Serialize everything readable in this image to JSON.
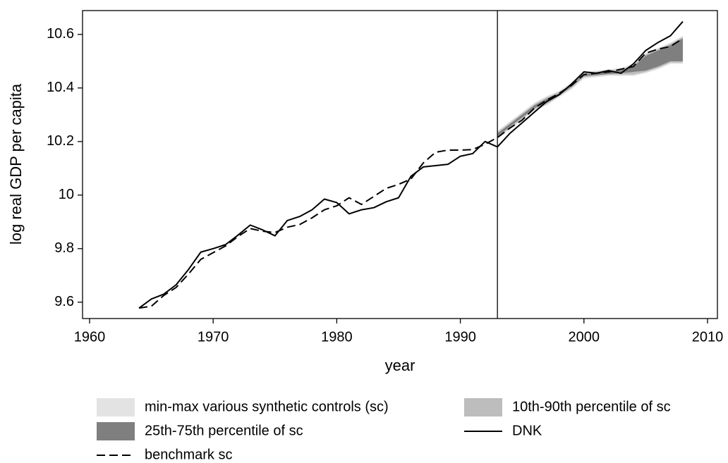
{
  "chart_data": {
    "type": "line",
    "x_label": "year",
    "y_label": "log real GDP per capita",
    "xlim": [
      1959.43,
      2010.8
    ],
    "ylim": [
      9.539,
      10.689
    ],
    "xticks": [
      1960,
      1970,
      1980,
      1990,
      2000,
      2010
    ],
    "yticks": [
      9.6,
      9.8,
      10,
      10.2,
      10.4,
      10.6
    ],
    "vline": 1993,
    "x": [
      1964,
      1965,
      1966,
      1967,
      1968,
      1969,
      1970,
      1971,
      1972,
      1973,
      1974,
      1975,
      1976,
      1977,
      1978,
      1979,
      1980,
      1981,
      1982,
      1983,
      1984,
      1985,
      1986,
      1987,
      1988,
      1989,
      1990,
      1991,
      1992,
      1993,
      1994,
      1995,
      1996,
      1997,
      1998,
      1999,
      2000,
      2001,
      2002,
      2003,
      2004,
      2005,
      2006,
      2007,
      2008
    ],
    "bands": [
      {
        "name": "min-max various synthetic controls (sc)",
        "color": "#e3e3e3",
        "x": [
          1993,
          1994,
          1995,
          1996,
          1997,
          1998,
          1999,
          2000,
          2001,
          2002,
          2003,
          2004,
          2005,
          2006,
          2007,
          2008
        ],
        "lower": [
          10.21,
          10.245,
          10.28,
          10.315,
          10.335,
          10.365,
          10.395,
          10.435,
          10.44,
          10.445,
          10.445,
          10.445,
          10.455,
          10.47,
          10.49,
          10.49
        ],
        "upper": [
          10.24,
          10.275,
          10.31,
          10.345,
          10.37,
          10.39,
          10.42,
          10.46,
          10.465,
          10.47,
          10.475,
          10.49,
          10.53,
          10.55,
          10.57,
          10.595
        ]
      },
      {
        "name": "10th-90th percentile of sc",
        "color": "#bdbdbd",
        "x": [
          1993,
          1994,
          1995,
          1996,
          1997,
          1998,
          1999,
          2000,
          2001,
          2002,
          2003,
          2004,
          2005,
          2006,
          2007,
          2008
        ],
        "lower": [
          10.215,
          10.25,
          10.285,
          10.32,
          10.34,
          10.37,
          10.4,
          10.44,
          10.445,
          10.45,
          10.45,
          10.45,
          10.46,
          10.475,
          10.495,
          10.495
        ],
        "upper": [
          10.235,
          10.27,
          10.305,
          10.34,
          10.365,
          10.385,
          10.415,
          10.455,
          10.46,
          10.465,
          10.47,
          10.485,
          10.525,
          10.545,
          10.565,
          10.59
        ]
      },
      {
        "name": "25th-75th percentile of sc",
        "color": "#7f7f7f",
        "x": [
          1993,
          1994,
          1995,
          1996,
          1997,
          1998,
          1999,
          2000,
          2001,
          2002,
          2003,
          2004,
          2005,
          2006,
          2007,
          2008
        ],
        "lower": [
          10.22,
          10.255,
          10.29,
          10.325,
          10.345,
          10.373,
          10.405,
          10.445,
          10.448,
          10.452,
          10.455,
          10.46,
          10.465,
          10.48,
          10.5,
          10.5
        ],
        "upper": [
          10.23,
          10.265,
          10.3,
          10.335,
          10.36,
          10.38,
          10.41,
          10.45,
          10.455,
          10.46,
          10.465,
          10.48,
          10.52,
          10.54,
          10.56,
          10.585
        ]
      }
    ],
    "series": [
      {
        "name": "DNK",
        "color": "#000000",
        "dash": false,
        "values": [
          9.578,
          9.612,
          9.63,
          9.665,
          9.722,
          9.787,
          9.8,
          9.815,
          9.85,
          9.888,
          9.87,
          9.848,
          9.905,
          9.92,
          9.945,
          9.985,
          9.972,
          9.93,
          9.945,
          9.953,
          9.975,
          9.99,
          10.07,
          10.105,
          10.11,
          10.115,
          10.145,
          10.155,
          10.2,
          10.18,
          10.23,
          10.27,
          10.31,
          10.35,
          10.375,
          10.415,
          10.46,
          10.455,
          10.465,
          10.455,
          10.49,
          10.54,
          10.57,
          10.595,
          10.648
        ]
      },
      {
        "name": "benchmark sc",
        "color": "#000000",
        "dash": true,
        "values": [
          9.578,
          9.585,
          9.625,
          9.655,
          9.705,
          9.76,
          9.785,
          9.81,
          9.845,
          9.875,
          9.865,
          9.86,
          9.88,
          9.89,
          9.915,
          9.945,
          9.96,
          9.99,
          9.965,
          9.995,
          10.025,
          10.04,
          10.06,
          10.12,
          10.16,
          10.168,
          10.168,
          10.17,
          10.19,
          10.215,
          10.25,
          10.28,
          10.325,
          10.355,
          10.38,
          10.41,
          10.45,
          10.455,
          10.46,
          10.47,
          10.48,
          10.53,
          10.545,
          10.555,
          10.585
        ]
      }
    ]
  }
}
